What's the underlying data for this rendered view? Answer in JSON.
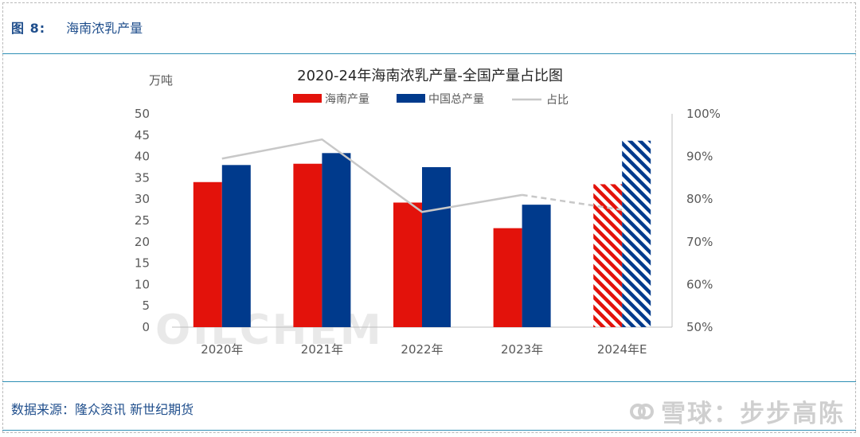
{
  "header": {
    "figure_no": "图 8:",
    "title": "海南浓乳产量"
  },
  "footer": {
    "source": "数据来源：隆众资讯  新世纪期货"
  },
  "watermark": {
    "text": "雪球：步步高陈",
    "chart_watermark": "OILCHEM"
  },
  "colors": {
    "hainan": "#e3120b",
    "china": "#003a8c",
    "ratio": "#c8c8c8",
    "axis_text": "#595959"
  },
  "chart_data": {
    "type": "bar",
    "title": "2020-24年海南浓乳产量-全国产量占比图",
    "y_unit_label": "万吨",
    "categories": [
      "2020年",
      "2021年",
      "2022年",
      "2023年",
      "2024年E"
    ],
    "estimated_categories": [
      "2024年E"
    ],
    "ylim": [
      0,
      50
    ],
    "yticks": [
      "0",
      "5",
      "10",
      "15",
      "20",
      "25",
      "30",
      "35",
      "40",
      "45",
      "50"
    ],
    "y2lim": [
      50,
      100
    ],
    "y2ticks": [
      "50%",
      "60%",
      "70%",
      "80%",
      "90%",
      "100%"
    ],
    "legend_position": "top",
    "series": [
      {
        "name": "海南产量",
        "type": "bar",
        "values": [
          34,
          38.3,
          29.2,
          23.2,
          33.5
        ]
      },
      {
        "name": "中国总产量",
        "type": "bar",
        "values": [
          38,
          40.8,
          37.5,
          28.7,
          43.7
        ]
      },
      {
        "name": "占比",
        "type": "line",
        "axis": "right",
        "values": [
          89.5,
          94,
          77,
          81,
          77.5
        ]
      }
    ]
  }
}
